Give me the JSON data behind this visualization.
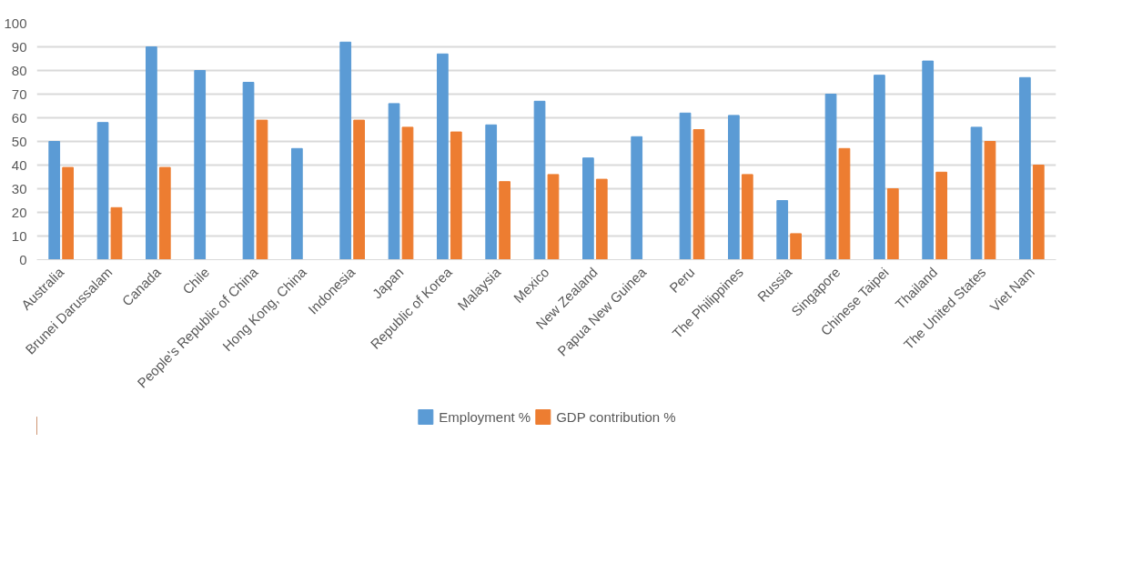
{
  "chart_data": {
    "type": "bar",
    "categories": [
      "Australia",
      "Brunei Darussalam",
      "Canada",
      "Chile",
      "People's Republic of China",
      "Hong Kong, China",
      "Indonesia",
      "Japan",
      "Republic of Korea",
      "Malaysia",
      "Mexico",
      "New Zealand",
      "Papua New Guinea",
      "Peru",
      "The Philippines",
      "Russia",
      "Singapore",
      "Chinese Taipei",
      "Thailand",
      "The United States",
      "Viet Nam"
    ],
    "series": [
      {
        "name": "Employment %",
        "color": "#5b9bd5",
        "values": [
          50,
          58,
          90,
          80,
          75,
          47,
          92,
          66,
          87,
          57,
          67,
          43,
          52,
          62,
          61,
          25,
          70,
          78,
          84,
          56,
          77
        ]
      },
      {
        "name": "GDP contribution %",
        "color": "#ed7d31",
        "values": [
          39,
          22,
          39,
          null,
          59,
          null,
          59,
          56,
          54,
          33,
          36,
          34,
          null,
          55,
          36,
          11,
          47,
          30,
          37,
          50,
          40
        ]
      }
    ],
    "ylim": [
      0,
      100
    ],
    "yticks": [
      0,
      10,
      20,
      30,
      40,
      50,
      60,
      70,
      80,
      90,
      100
    ],
    "grid": "y",
    "legend": "bottom"
  }
}
